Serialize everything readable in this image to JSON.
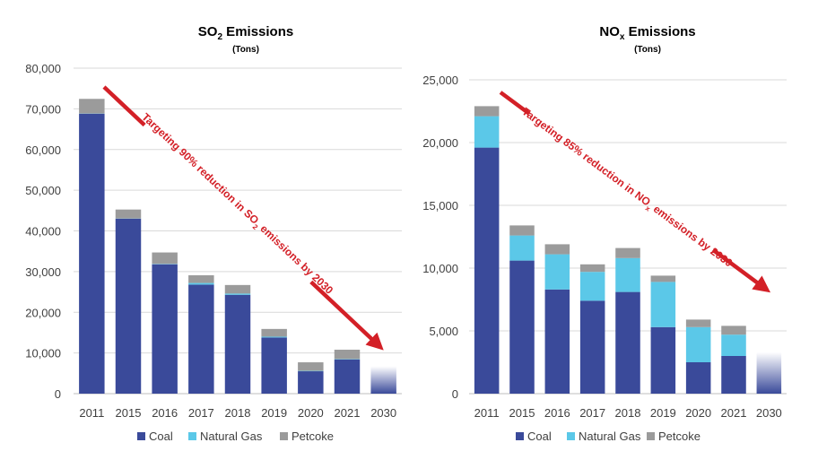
{
  "colors": {
    "coal": "#3A4A9A",
    "natural_gas": "#5BC8E8",
    "petcoke": "#9B9B9B",
    "arrow": "#D32027",
    "grid": "#D9D9D9",
    "axis_text": "#404040"
  },
  "legend_labels": [
    "Coal",
    "Natural Gas",
    "Petcoke"
  ],
  "chart_data": [
    {
      "type": "bar",
      "stacked": true,
      "title_main": "SO",
      "title_sub": "2",
      "title_rest": " Emissions",
      "subtitle": "(Tons)",
      "categories": [
        "2011",
        "2015",
        "2016",
        "2017",
        "2018",
        "2019",
        "2020",
        "2021",
        "2030"
      ],
      "ylim": [
        0,
        80000
      ],
      "yticks": [
        0,
        10000,
        20000,
        30000,
        40000,
        50000,
        60000,
        70000,
        80000
      ],
      "ytick_labels": [
        "0",
        "10,000",
        "20,000",
        "30,000",
        "40,000",
        "50,000",
        "60,000",
        "70,000",
        "80,000"
      ],
      "series": [
        {
          "name": "Coal",
          "values": [
            68800,
            43000,
            31800,
            26800,
            24300,
            13800,
            5500,
            8400,
            0
          ]
        },
        {
          "name": "Natural Gas",
          "values": [
            50,
            50,
            100,
            400,
            300,
            200,
            100,
            100,
            0
          ]
        },
        {
          "name": "Petcoke",
          "values": [
            3600,
            2200,
            2800,
            1900,
            2100,
            1900,
            2100,
            2300,
            0
          ]
        }
      ],
      "target_value": 6700,
      "target_category": "2030",
      "annotation_pre": "Targeting 90% reduction in SO",
      "annotation_sub": "2",
      "annotation_post": " emissions by 2030",
      "legend": "bottom"
    },
    {
      "type": "bar",
      "stacked": true,
      "title_main": "NO",
      "title_sub": "x",
      "title_rest": " Emissions",
      "subtitle": "(Tons)",
      "categories": [
        "2011",
        "2015",
        "2016",
        "2017",
        "2018",
        "2019",
        "2020",
        "2021",
        "2030"
      ],
      "ylim": [
        0,
        25000
      ],
      "yticks": [
        0,
        5000,
        10000,
        15000,
        20000,
        25000
      ],
      "ytick_labels": [
        "0",
        "5,000",
        "10,000",
        "15,000",
        "20,000",
        "25,000"
      ],
      "series": [
        {
          "name": "Coal",
          "values": [
            19600,
            10600,
            8300,
            7400,
            8100,
            5300,
            2500,
            3000,
            0
          ]
        },
        {
          "name": "Natural Gas",
          "values": [
            2500,
            2000,
            2800,
            2300,
            2700,
            3600,
            2800,
            1700,
            0
          ]
        },
        {
          "name": "Petcoke",
          "values": [
            800,
            800,
            800,
            600,
            800,
            500,
            600,
            700,
            0
          ]
        }
      ],
      "target_value": 3300,
      "target_category": "2030",
      "annotation_pre": "Targeting 85% reduction in NO",
      "annotation_sub": "x",
      "annotation_post": " emissions by 2030",
      "legend": "bottom"
    }
  ]
}
